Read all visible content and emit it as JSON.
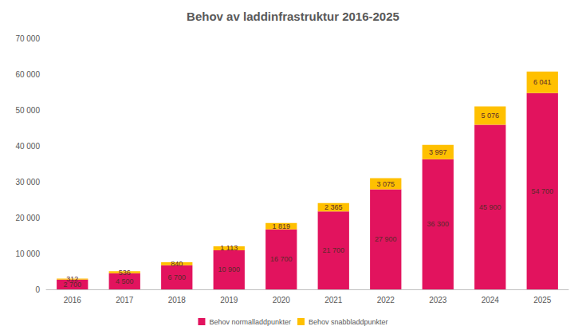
{
  "chart_data": {
    "type": "bar",
    "title": "Behov av laddinfrastruktur 2016-2025",
    "categories": [
      "2016",
      "2017",
      "2018",
      "2019",
      "2020",
      "2021",
      "2022",
      "2023",
      "2024",
      "2025"
    ],
    "series": [
      {
        "name": "Behov normalladdpunkter",
        "color": "#e2135e",
        "values": [
          2700,
          4500,
          6700,
          10900,
          16700,
          21700,
          27900,
          36300,
          45900,
          54700
        ],
        "value_labels": [
          "2 700",
          "4 500",
          "6 700",
          "10 900",
          "16 700",
          "21 700",
          "27 900",
          "36 300",
          "45 900",
          "54 700"
        ]
      },
      {
        "name": "Behov snabbladdpunkter",
        "color": "#ffc000",
        "values": [
          312,
          536,
          840,
          1113,
          1819,
          2365,
          3075,
          3997,
          5076,
          6041
        ],
        "value_labels": [
          "312",
          "536",
          "840",
          "1 113",
          "1 819",
          "2 365",
          "3 075",
          "3 997",
          "5 076",
          "6 041"
        ]
      }
    ],
    "stacked": true,
    "data_labels": true,
    "ylim": [
      0,
      70000
    ],
    "yticks": [
      0,
      {
        "value": 10000,
        "label": "10 000"
      },
      {
        "value": 20000,
        "label": "20 000"
      },
      {
        "value": 30000,
        "label": "30 000"
      },
      {
        "value": 40000,
        "label": "40 000"
      },
      {
        "value": 50000,
        "label": "50 000"
      },
      {
        "value": 60000,
        "label": "60 000"
      },
      {
        "value": 70000,
        "label": "70 000"
      }
    ],
    "grid": false,
    "legend": "bottom"
  }
}
